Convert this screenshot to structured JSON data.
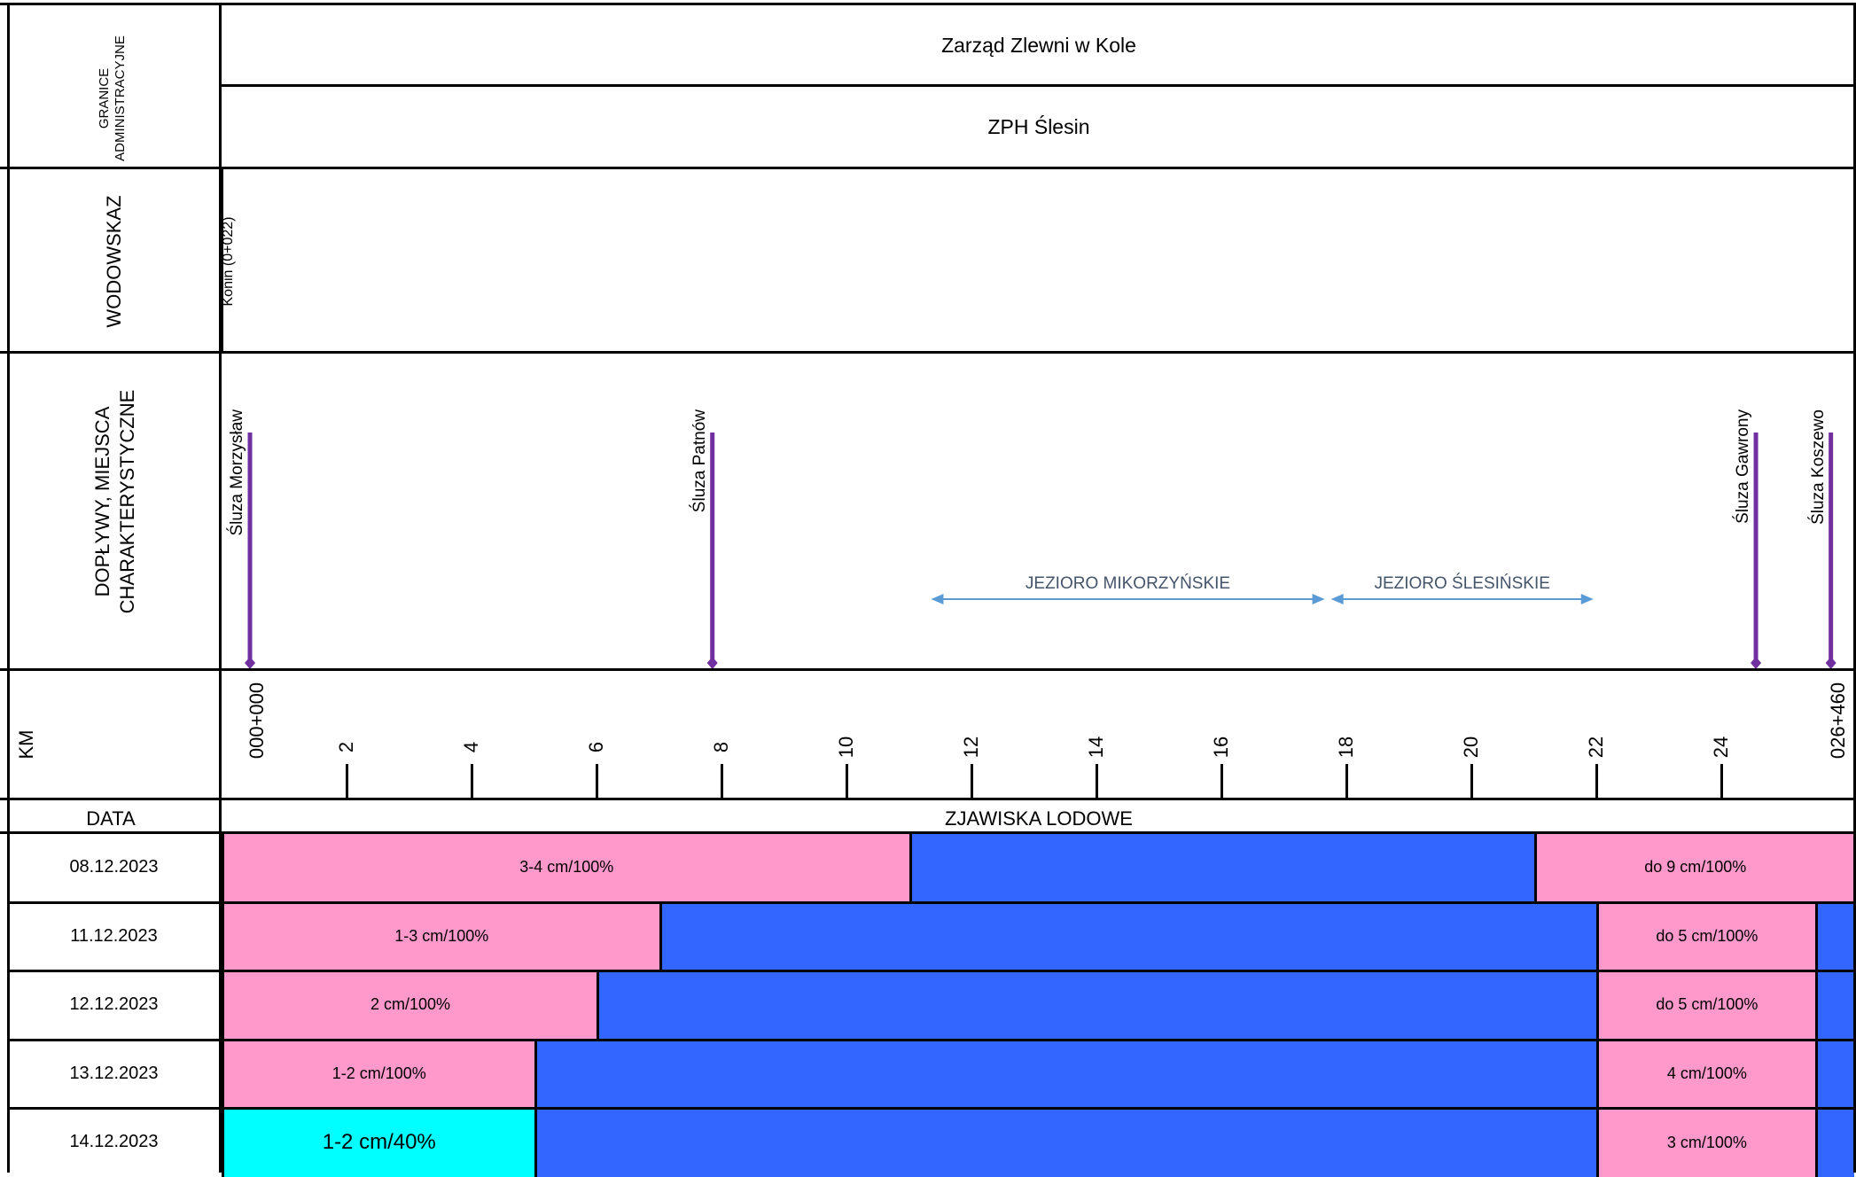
{
  "headers": {
    "granice": "GRANICE\nADMINISTRACYJNE",
    "wodowskaz": "WODOWSKAZ",
    "doplywy": "DOPŁYWY, MIEJSCA\nCHARAKTERYSTYCZNE",
    "km": "KM",
    "data": "DATA",
    "zjawiska": "ZJAWISKA LODOWE"
  },
  "admin": {
    "row1": "Zarząd Zlewni w Kole",
    "row2": "ZPH Ślesin"
  },
  "gauge": {
    "label": "Konin (0+022)",
    "km": 0.022
  },
  "places": [
    {
      "label": "Śluza Morzysław",
      "km": 0
    },
    {
      "label": "Śluza Patnów",
      "km": 7.4
    },
    {
      "label": "Śluza Gawrony",
      "km": 24.1
    },
    {
      "label": "Śluza Koszewo",
      "km": 25.3
    }
  ],
  "lakes": [
    {
      "label": "JEZIORO MIKORZYŃSKIE",
      "from_km": 10.9,
      "to_km": 17.2
    },
    {
      "label": "JEZIORO ŚLESIŃSKIE",
      "from_km": 17.3,
      "to_km": 21.5
    }
  ],
  "km_axis": {
    "start_label": "000+000",
    "end_label": "026+460",
    "min": 0,
    "max": 26.46,
    "ticks": [
      "2",
      "4",
      "6",
      "8",
      "10",
      "12",
      "14",
      "16",
      "18",
      "20",
      "22",
      "24"
    ]
  },
  "ice_colors": {
    "pink": "#ff99cc",
    "blue": "#3366ff",
    "cyan": "#00ffff"
  },
  "rows": [
    {
      "date": "08.12.2023",
      "segments": [
        {
          "from_km": 0,
          "to_km": 11,
          "color": "pink",
          "label": "3-4 cm/100%"
        },
        {
          "from_km": 11,
          "to_km": 21,
          "color": "blue",
          "label": ""
        },
        {
          "from_km": 21,
          "to_km": 26.46,
          "color": "pink",
          "label": "do 9 cm/100%"
        }
      ]
    },
    {
      "date": "11.12.2023",
      "segments": [
        {
          "from_km": 0,
          "to_km": 7,
          "color": "pink",
          "label": "1-3 cm/100%"
        },
        {
          "from_km": 7,
          "to_km": 22,
          "color": "blue",
          "label": ""
        },
        {
          "from_km": 22,
          "to_km": 25.5,
          "color": "pink",
          "label": "do 5 cm/100%"
        },
        {
          "from_km": 25.5,
          "to_km": 26.46,
          "color": "blue",
          "label": ""
        }
      ]
    },
    {
      "date": "12.12.2023",
      "segments": [
        {
          "from_km": 0,
          "to_km": 6,
          "color": "pink",
          "label": "2 cm/100%"
        },
        {
          "from_km": 6,
          "to_km": 22,
          "color": "blue",
          "label": ""
        },
        {
          "from_km": 22,
          "to_km": 25.5,
          "color": "pink",
          "label": "do 5 cm/100%"
        },
        {
          "from_km": 25.5,
          "to_km": 26.46,
          "color": "blue",
          "label": ""
        }
      ]
    },
    {
      "date": "13.12.2023",
      "segments": [
        {
          "from_km": 0,
          "to_km": 5,
          "color": "pink",
          "label": "1-2 cm/100%"
        },
        {
          "from_km": 5,
          "to_km": 22,
          "color": "blue",
          "label": ""
        },
        {
          "from_km": 22,
          "to_km": 25.5,
          "color": "pink",
          "label": "4 cm/100%"
        },
        {
          "from_km": 25.5,
          "to_km": 26.46,
          "color": "blue",
          "label": ""
        }
      ]
    },
    {
      "date": "14.12.2023",
      "segments": [
        {
          "from_km": 0,
          "to_km": 5,
          "color": "cyan",
          "label": "1-2 cm/40%"
        },
        {
          "from_km": 5,
          "to_km": 22,
          "color": "blue",
          "label": ""
        },
        {
          "from_km": 22,
          "to_km": 25.5,
          "color": "pink",
          "label": "3 cm/100%"
        },
        {
          "from_km": 25.5,
          "to_km": 26.46,
          "color": "blue",
          "label": ""
        }
      ]
    }
  ]
}
